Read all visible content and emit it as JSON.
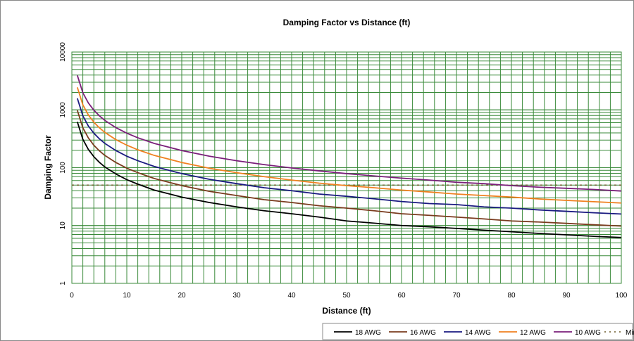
{
  "chart_data": {
    "type": "line",
    "title": "Damping Factor  vs Distance (ft)",
    "xlabel": "Distance (ft)",
    "ylabel": "Damping Factor",
    "xlim": [
      0,
      100
    ],
    "ylim": [
      1,
      10000
    ],
    "yscale": "log",
    "grid": true,
    "legend_position": "bottom-right",
    "x_ticks": [
      "0",
      "10",
      "20",
      "30",
      "40",
      "50",
      "60",
      "70",
      "80",
      "90",
      "100"
    ],
    "y_ticks": [
      "1",
      "10",
      "100",
      "1000",
      "10000"
    ],
    "x": [
      1,
      2,
      3,
      4,
      5,
      6,
      8,
      10,
      12,
      15,
      20,
      25,
      30,
      35,
      40,
      45,
      50,
      55,
      60,
      65,
      70,
      75,
      80,
      85,
      90,
      95,
      100
    ],
    "series": [
      {
        "name": "18 AWG",
        "color": "#000000",
        "values": [
          620,
          310,
          207,
          155,
          124,
          103,
          78,
          62,
          52,
          41,
          31,
          25,
          21,
          18,
          16,
          14,
          12,
          11,
          10,
          9.5,
          8.9,
          8.3,
          7.8,
          7.3,
          6.9,
          6.5,
          6.2
        ]
      },
      {
        "name": "16 AWG",
        "color": "#7a3b1e",
        "values": [
          980,
          490,
          327,
          245,
          196,
          163,
          123,
          98,
          82,
          65,
          49,
          39,
          33,
          28,
          25,
          22,
          20,
          18,
          16,
          15,
          14,
          13,
          12,
          11.5,
          10.9,
          10.3,
          9.8
        ]
      },
      {
        "name": "14 AWG",
        "color": "#1a1a80",
        "values": [
          1580,
          790,
          527,
          395,
          316,
          263,
          198,
          158,
          132,
          105,
          79,
          63,
          53,
          45,
          40,
          35,
          32,
          29,
          26,
          24,
          23,
          21,
          20,
          18.6,
          17.6,
          16.6,
          15.8
        ]
      },
      {
        "name": "12 AWG",
        "color": "#f08020",
        "values": [
          2450,
          1225,
          817,
          613,
          490,
          408,
          306,
          245,
          204,
          163,
          123,
          98,
          82,
          70,
          61,
          54,
          49,
          45,
          41,
          38,
          35,
          33,
          31,
          28.8,
          27.2,
          25.8,
          24.5
        ]
      },
      {
        "name": "10 AWG",
        "color": "#7a1f7a",
        "values": [
          3950,
          1975,
          1317,
          988,
          790,
          658,
          494,
          395,
          329,
          263,
          198,
          158,
          132,
          113,
          99,
          88,
          79,
          72,
          66,
          61,
          56,
          53,
          49,
          46,
          44,
          42,
          39.5
        ]
      }
    ],
    "reference_line": {
      "name": "Min Damp",
      "value": 50,
      "color": "#6b5a2a",
      "style": "dashed"
    }
  }
}
